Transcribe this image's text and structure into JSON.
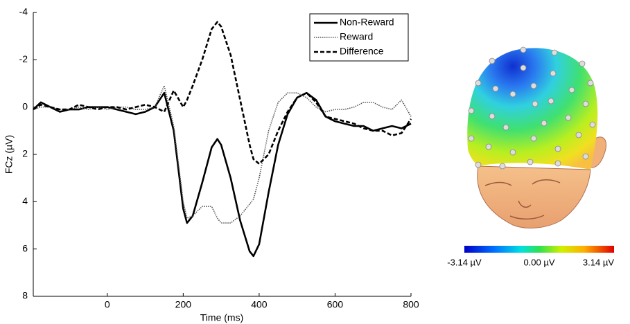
{
  "chart_data": {
    "type": "line",
    "xlabel": "Time (ms)",
    "ylabel": "FCz (µV)",
    "xlim": [
      -195,
      800
    ],
    "ylim": [
      -4,
      8
    ],
    "invert_y": true,
    "xticks": [
      0,
      200,
      400,
      600,
      800
    ],
    "yticks": [
      -4,
      -2,
      0,
      2,
      4,
      6,
      8
    ],
    "legend": "upper right",
    "x": [
      -195,
      -175,
      -150,
      -125,
      -100,
      -75,
      -50,
      -25,
      0,
      25,
      50,
      75,
      100,
      125,
      150,
      175,
      200,
      210,
      225,
      250,
      275,
      290,
      300,
      325,
      350,
      375,
      385,
      400,
      425,
      450,
      475,
      500,
      525,
      550,
      575,
      600,
      625,
      650,
      675,
      700,
      725,
      750,
      775,
      800
    ],
    "series": [
      {
        "name": "Non-Reward",
        "color": "#000000",
        "style": "solid",
        "values": [
          0.1,
          -0.2,
          0,
          0.2,
          0.1,
          0.1,
          0,
          0,
          0,
          0.1,
          0.2,
          0.3,
          0.2,
          0,
          -0.6,
          1.0,
          4.3,
          4.9,
          4.6,
          3.2,
          1.7,
          1.35,
          1.6,
          3.0,
          4.8,
          6.1,
          6.3,
          5.8,
          3.6,
          1.6,
          0.3,
          -0.4,
          -0.6,
          -0.3,
          0.4,
          0.6,
          0.7,
          0.8,
          0.8,
          1.0,
          0.9,
          0.8,
          0.9,
          0.7
        ]
      },
      {
        "name": "Reward",
        "color": "#555555",
        "style": "dotted",
        "values": [
          0.1,
          0,
          0,
          0.1,
          0.1,
          0,
          0.1,
          0,
          0.1,
          0,
          0,
          0.1,
          0.1,
          0,
          -0.9,
          0.8,
          4.0,
          4.7,
          4.6,
          4.2,
          4.2,
          4.7,
          4.9,
          4.9,
          4.6,
          4.1,
          3.9,
          3.0,
          1.0,
          -0.2,
          -0.6,
          -0.6,
          -0.4,
          0,
          0.2,
          0.1,
          0.1,
          0,
          -0.2,
          -0.2,
          0,
          0.1,
          -0.3,
          0.4
        ]
      },
      {
        "name": "Difference",
        "color": "#000000",
        "style": "dashed",
        "values": [
          0.1,
          -0.1,
          0,
          0.1,
          0.1,
          -0.1,
          0,
          0.1,
          0,
          0,
          0.1,
          0,
          -0.1,
          0,
          0.2,
          -0.7,
          0,
          -0.3,
          -0.9,
          -2.0,
          -3.3,
          -3.6,
          -3.4,
          -2.2,
          -0.3,
          1.6,
          2.2,
          2.4,
          2.0,
          1.0,
          0.2,
          -0.4,
          -0.6,
          -0.2,
          0.4,
          0.5,
          0.6,
          0.7,
          0.9,
          1.0,
          1.0,
          1.2,
          1.1,
          0.5
        ]
      }
    ],
    "colorbar": {
      "labels": [
        "-3.14 µV",
        "0.00 µV",
        "3.14 µV"
      ]
    }
  }
}
